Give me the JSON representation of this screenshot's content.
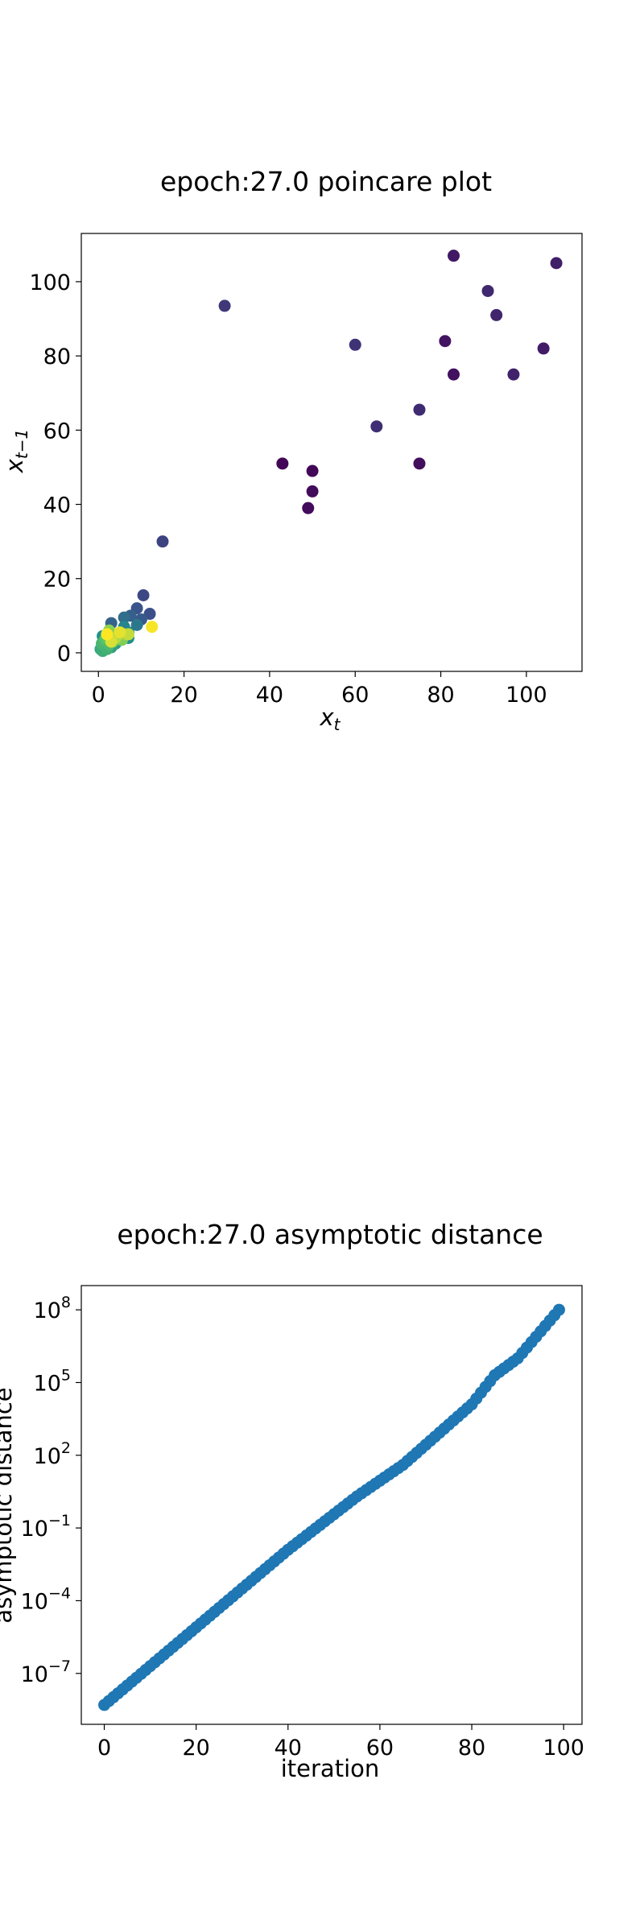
{
  "chart_data": [
    {
      "type": "scatter",
      "title": "epoch:27.0 poincare plot",
      "xlabel": "x",
      "xlabel_sub": "t",
      "ylabel": "x",
      "ylabel_sub": "t−1",
      "xlim": [
        -4,
        113
      ],
      "ylim": [
        -5,
        113
      ],
      "xticks": [
        0,
        20,
        40,
        60,
        80,
        100
      ],
      "yticks": [
        0,
        20,
        40,
        60,
        80,
        100
      ],
      "grid": false,
      "colormap": "viridis",
      "colormap_colors": [
        "#440154",
        "#3b528b",
        "#21918c",
        "#5ec962",
        "#fde725"
      ],
      "points": [
        {
          "x": 43,
          "y": 51,
          "c": 0.02
        },
        {
          "x": 50,
          "y": 49,
          "c": 0.02
        },
        {
          "x": 50,
          "y": 43.5,
          "c": 0.03
        },
        {
          "x": 49,
          "y": 39,
          "c": 0.03
        },
        {
          "x": 75,
          "y": 51,
          "c": 0.04
        },
        {
          "x": 83,
          "y": 75,
          "c": 0.05
        },
        {
          "x": 81,
          "y": 84,
          "c": 0.06
        },
        {
          "x": 83,
          "y": 107,
          "c": 0.07
        },
        {
          "x": 104,
          "y": 82,
          "c": 0.08
        },
        {
          "x": 107,
          "y": 105,
          "c": 0.09
        },
        {
          "x": 97,
          "y": 75,
          "c": 0.1
        },
        {
          "x": 93,
          "y": 91,
          "c": 0.11
        },
        {
          "x": 91,
          "y": 97.5,
          "c": 0.12
        },
        {
          "x": 75,
          "y": 65.5,
          "c": 0.13
        },
        {
          "x": 65,
          "y": 61,
          "c": 0.14
        },
        {
          "x": 60,
          "y": 83,
          "c": 0.15
        },
        {
          "x": 29.5,
          "y": 93.5,
          "c": 0.17
        },
        {
          "x": 15,
          "y": 30,
          "c": 0.2
        },
        {
          "x": 10.5,
          "y": 15.5,
          "c": 0.22
        },
        {
          "x": 12,
          "y": 10.5,
          "c": 0.24
        },
        {
          "x": 9,
          "y": 12,
          "c": 0.26
        },
        {
          "x": 10,
          "y": 9,
          "c": 0.28
        },
        {
          "x": 7.5,
          "y": 10,
          "c": 0.3
        },
        {
          "x": 3,
          "y": 8,
          "c": 0.32
        },
        {
          "x": 6,
          "y": 9.5,
          "c": 0.36
        },
        {
          "x": 9,
          "y": 7.5,
          "c": 0.4
        },
        {
          "x": 7,
          "y": 5.5,
          "c": 0.43
        },
        {
          "x": 6,
          "y": 7,
          "c": 0.45
        },
        {
          "x": 5,
          "y": 4.5,
          "c": 0.47
        },
        {
          "x": 7,
          "y": 4,
          "c": 0.49
        },
        {
          "x": 1,
          "y": 4.5,
          "c": 0.5
        },
        {
          "x": 2,
          "y": 3,
          "c": 0.52
        },
        {
          "x": 4,
          "y": 2.5,
          "c": 0.54
        },
        {
          "x": 3,
          "y": 1.5,
          "c": 0.56
        },
        {
          "x": 1.5,
          "y": 2,
          "c": 0.58
        },
        {
          "x": 0.5,
          "y": 1,
          "c": 0.6
        },
        {
          "x": 1,
          "y": 0.5,
          "c": 0.62
        },
        {
          "x": 2,
          "y": 1,
          "c": 0.64
        },
        {
          "x": 0.8,
          "y": 2.5,
          "c": 0.66
        },
        {
          "x": 2.5,
          "y": 2.2,
          "c": 0.68
        },
        {
          "x": 1.5,
          "y": 3.5,
          "c": 0.7
        },
        {
          "x": 3.5,
          "y": 3,
          "c": 0.72
        },
        {
          "x": 2,
          "y": 4,
          "c": 0.74
        },
        {
          "x": 4.5,
          "y": 4.5,
          "c": 0.76
        },
        {
          "x": 3,
          "y": 5,
          "c": 0.78
        },
        {
          "x": 5.5,
          "y": 3.5,
          "c": 0.8
        },
        {
          "x": 2.5,
          "y": 6,
          "c": 0.82
        },
        {
          "x": 6,
          "y": 5,
          "c": 0.85
        },
        {
          "x": 4,
          "y": 4,
          "c": 0.88
        },
        {
          "x": 7,
          "y": 5,
          "c": 0.91
        },
        {
          "x": 3,
          "y": 3,
          "c": 0.94
        },
        {
          "x": 5,
          "y": 5.5,
          "c": 0.96
        },
        {
          "x": 12.5,
          "y": 7,
          "c": 0.99
        },
        {
          "x": 2,
          "y": 5,
          "c": 1.0
        }
      ]
    },
    {
      "type": "scatter",
      "title": "epoch:27.0 asymptotic distance",
      "xlabel": "iteration",
      "ylabel": "asymptotic distance",
      "log_y": true,
      "xlim": [
        -5,
        104
      ],
      "ylim_log10": [
        -9.1,
        9.0
      ],
      "xticks": [
        0,
        20,
        40,
        60,
        80,
        100
      ],
      "yticks": [
        {
          "base": "10",
          "exp": "−7",
          "log10": -7
        },
        {
          "base": "10",
          "exp": "−4",
          "log10": -4
        },
        {
          "base": "10",
          "exp": "−1",
          "log10": -1
        },
        {
          "base": "10",
          "exp": "2",
          "log10": 2
        },
        {
          "base": "10",
          "exp": "5",
          "log10": 5
        },
        {
          "base": "10",
          "exp": "8",
          "log10": 8
        }
      ],
      "color": "#1f77b4",
      "grid": false,
      "x": [
        0,
        20,
        40,
        55,
        65,
        80,
        85,
        90,
        99
      ],
      "log10_y": [
        -8.3,
        -5.1,
        -1.9,
        0.3,
        1.6,
        4.1,
        5.3,
        6.0,
        8.0
      ]
    }
  ]
}
